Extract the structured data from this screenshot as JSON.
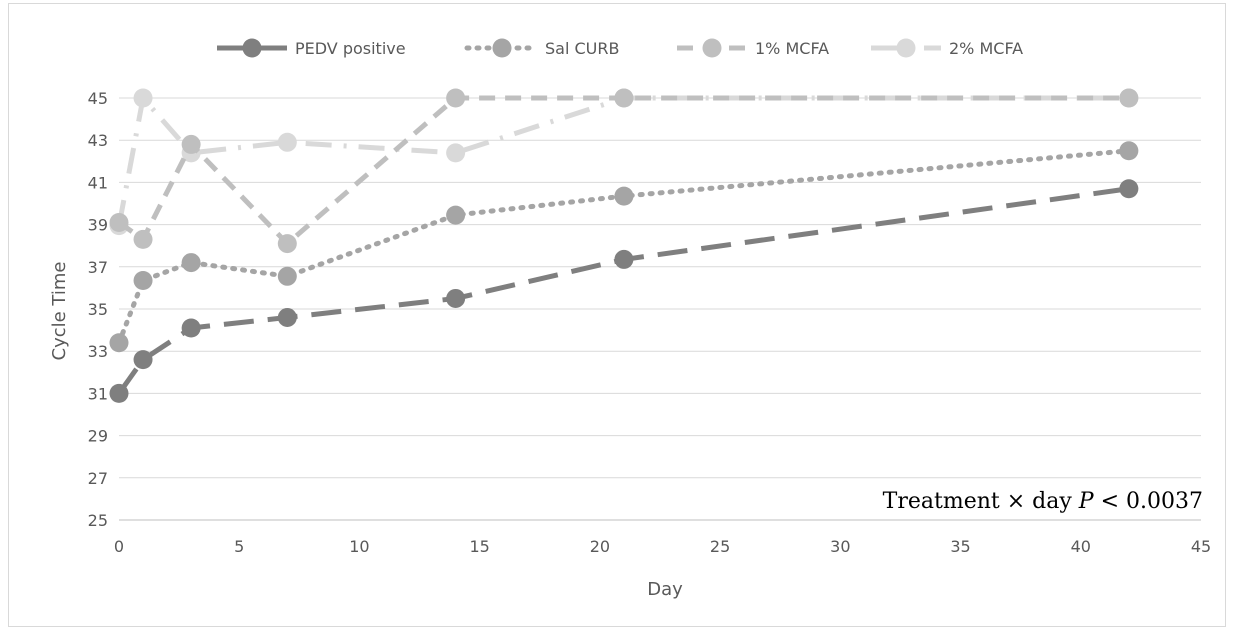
{
  "chart_data": {
    "type": "line",
    "title": "",
    "xlabel": "Day",
    "ylabel": "Cycle Time",
    "xlim": [
      0,
      45
    ],
    "ylim": [
      25,
      45
    ],
    "x_ticks": [
      "0",
      "5",
      "10",
      "15",
      "20",
      "25",
      "30",
      "35",
      "40",
      "45"
    ],
    "y_ticks": [
      "25",
      "27",
      "29",
      "31",
      "33",
      "35",
      "37",
      "39",
      "41",
      "43",
      "45"
    ],
    "grid": "horizontal",
    "legend_position": "top",
    "annotation": {
      "prefix": "Treatment × day ",
      "italic": "P",
      "suffix": " < 0.0037"
    },
    "series": [
      {
        "name": "PEDV positive",
        "color": "#7f7f7f",
        "dash": "long-dash",
        "points": [
          [
            0,
            31.0
          ],
          [
            1,
            32.6
          ],
          [
            3,
            34.1
          ],
          [
            7,
            34.6
          ],
          [
            14,
            35.5
          ],
          [
            21,
            37.35
          ],
          [
            42,
            40.7
          ]
        ]
      },
      {
        "name": "Sal CURB",
        "color": "#a5a5a5",
        "dash": "dot",
        "points": [
          [
            0,
            33.4
          ],
          [
            1,
            36.35
          ],
          [
            3,
            37.2
          ],
          [
            7,
            36.55
          ],
          [
            14,
            39.45
          ],
          [
            21,
            40.35
          ],
          [
            42,
            42.5
          ]
        ]
      },
      {
        "name": "1% MCFA",
        "color": "#bfbfbf",
        "dash": "dash",
        "points": [
          [
            0,
            39.1
          ],
          [
            1,
            38.3
          ],
          [
            3,
            42.8
          ],
          [
            7,
            38.1
          ],
          [
            14,
            45.0
          ],
          [
            21,
            45.0
          ],
          [
            42,
            45.0
          ]
        ]
      },
      {
        "name": "2% MCFA",
        "color": "#d9d9d9",
        "dash": "long-dash-dot",
        "points": [
          [
            0,
            38.95
          ],
          [
            1,
            45.0
          ],
          [
            3,
            42.4
          ],
          [
            7,
            42.9
          ],
          [
            14,
            42.4
          ],
          [
            21,
            45.0
          ],
          [
            42,
            45.0
          ]
        ]
      }
    ]
  }
}
